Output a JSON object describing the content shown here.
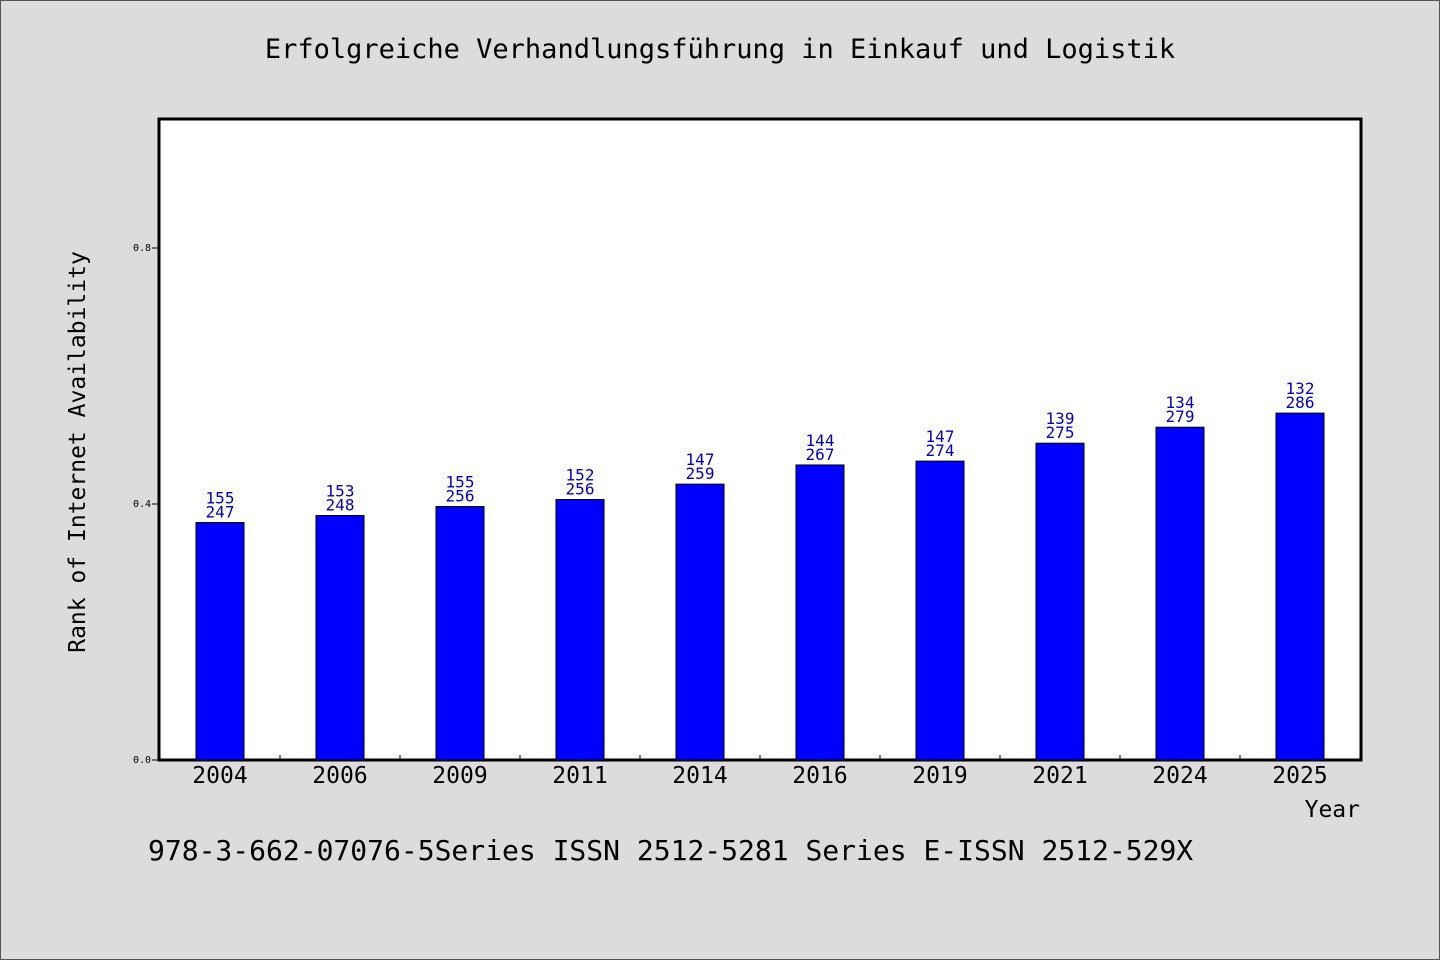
{
  "chart_data": {
    "type": "bar",
    "title": "Erfolgreiche Verhandlungsführung in Einkauf und Logistik",
    "xlabel": "Year",
    "ylabel": "Rank of Internet Availability",
    "categories": [
      "2004",
      "2006",
      "2009",
      "2011",
      "2014",
      "2016",
      "2019",
      "2021",
      "2024",
      "2025"
    ],
    "series": [
      {
        "values": [
          0.371,
          0.382,
          0.396,
          0.407,
          0.431,
          0.461,
          0.467,
          0.495,
          0.52,
          0.542
        ],
        "label_top": [
          "155",
          "153",
          "155",
          "152",
          "147",
          "144",
          "147",
          "139",
          "134",
          "132"
        ],
        "label_bottom": [
          "247",
          "248",
          "256",
          "256",
          "259",
          "267",
          "274",
          "275",
          "279",
          "286"
        ]
      }
    ],
    "yticks": [
      "0.0",
      "0.4",
      "0.8"
    ],
    "ylim": [
      0,
      1.0
    ],
    "grid": false,
    "colors": {
      "bar": "#0000ff",
      "bar_label": "#0000cc",
      "axis": "#000000"
    }
  },
  "footer": {
    "text": "978-3-662-07076-5Series ISSN 2512-5281 Series E-ISSN 2512-529X"
  }
}
